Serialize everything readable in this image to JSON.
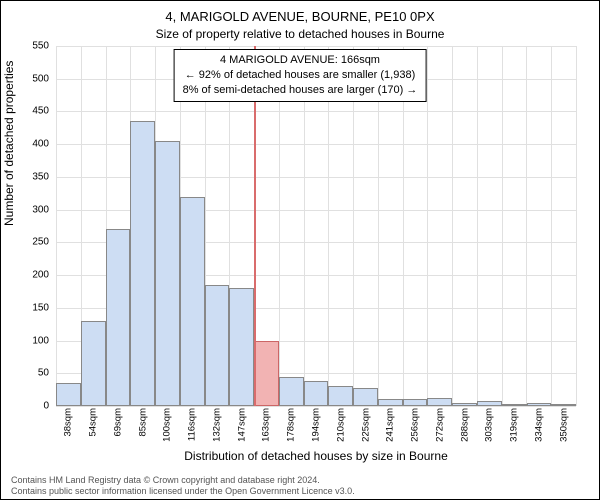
{
  "chart": {
    "type": "histogram",
    "title": "4, MARIGOLD AVENUE, BOURNE, PE10 0PX",
    "subtitle": "Size of property relative to detached houses in Bourne",
    "xlabel": "Distribution of detached houses by size in Bourne",
    "ylabel": "Number of detached properties",
    "categories": [
      "38sqm",
      "54sqm",
      "69sqm",
      "85sqm",
      "100sqm",
      "116sqm",
      "132sqm",
      "147sqm",
      "163sqm",
      "178sqm",
      "194sqm",
      "210sqm",
      "225sqm",
      "241sqm",
      "256sqm",
      "272sqm",
      "288sqm",
      "303sqm",
      "319sqm",
      "334sqm",
      "350sqm"
    ],
    "values": [
      35,
      130,
      270,
      435,
      405,
      320,
      185,
      180,
      100,
      45,
      38,
      30,
      28,
      10,
      10,
      12,
      5,
      8,
      3,
      5,
      3
    ],
    "bar_fill": "#cdddf3",
    "bar_border": "#888888",
    "highlight_bar_fill": "#f2b3b3",
    "highlight_bar_border": "#cc6666",
    "highlight_index": 8,
    "highlight_line_color": "#d96c6c",
    "background_color": "#ffffff",
    "grid_color": "#e0e0e0",
    "ylim": [
      0,
      550
    ],
    "ytick_step": 50,
    "title_fontsize": 13,
    "subtitle_fontsize": 12,
    "label_fontsize": 12,
    "tick_fontsize": 10,
    "annotation": {
      "line1": "4 MARIGOLD AVENUE: 166sqm",
      "line2": "← 92% of detached houses are smaller (1,938)",
      "line3": "8% of semi-detached houses are larger (170) →"
    },
    "footer": {
      "line1": "Contains HM Land Registry data © Crown copyright and database right 2024.",
      "line2": "Contains public sector information licensed under the Open Government Licence v3.0."
    }
  }
}
